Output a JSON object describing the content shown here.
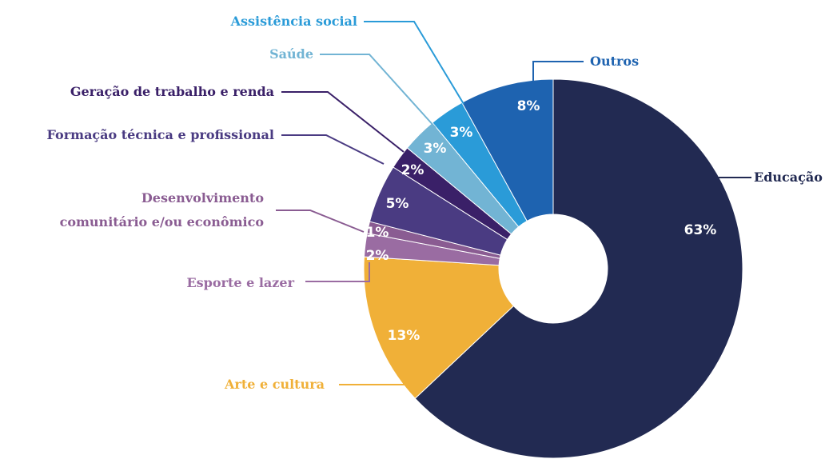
{
  "chart_data": {
    "type": "donut",
    "categories": [
      "Educação",
      "Arte e cultura",
      "Esporte e lazer",
      "Desenvolvimento\ncomunitário e/ou econômico",
      "Formação técnica e profissional",
      "Geração de trabalho e renda",
      "Saúde",
      "Assistência social",
      "Outros"
    ],
    "values": [
      63,
      13,
      2,
      1,
      5,
      2,
      3,
      3,
      8
    ],
    "value_labels": [
      "63%",
      "13%",
      "2%",
      "1%",
      "5%",
      "2%",
      "3%",
      "3%",
      "8%"
    ],
    "colors": [
      "#222a52",
      "#f0b038",
      "#9a6ca2",
      "#8a5c92",
      "#4a3b82",
      "#3a2068",
      "#72b4d4",
      "#2a9bd8",
      "#1e63b0"
    ]
  }
}
